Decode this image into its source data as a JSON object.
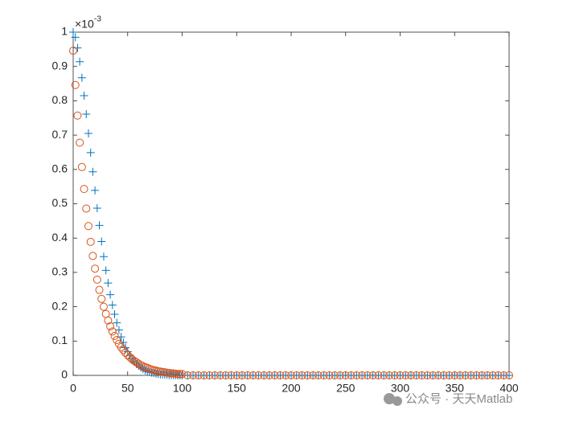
{
  "chart_data": {
    "type": "scatter",
    "y_multiplier": {
      "base": "×10",
      "exponent": "-3"
    },
    "watermark": "公众号 · 天天Matlab",
    "x": [
      0,
      2,
      4,
      6,
      8,
      10,
      12,
      14,
      16,
      18,
      20,
      22,
      24,
      26,
      28,
      30,
      32,
      34,
      36,
      38,
      40,
      42,
      44,
      46,
      48,
      50,
      52,
      54,
      56,
      58,
      60,
      62,
      64,
      66,
      68,
      70,
      72,
      74,
      76,
      78,
      80,
      82,
      84,
      86,
      88,
      90,
      92,
      94,
      96,
      98,
      100,
      105,
      110,
      115,
      120,
      125,
      130,
      135,
      140,
      145,
      150,
      155,
      160,
      165,
      170,
      175,
      180,
      185,
      190,
      195,
      200,
      205,
      210,
      215,
      220,
      225,
      230,
      235,
      240,
      245,
      250,
      255,
      260,
      265,
      270,
      275,
      280,
      285,
      290,
      295,
      300,
      305,
      310,
      315,
      320,
      325,
      330,
      335,
      340,
      345,
      350,
      355,
      360,
      365,
      370,
      375,
      380,
      385,
      390,
      395,
      400
    ],
    "series": [
      {
        "marker": "plus",
        "color": "#0072BD",
        "values": [
          1,
          0.985,
          0.954,
          0.914,
          0.867,
          0.815,
          0.761,
          0.705,
          0.649,
          0.593,
          0.539,
          0.487,
          0.437,
          0.39,
          0.346,
          0.306,
          0.269,
          0.235,
          0.205,
          0.178,
          0.153,
          0.132,
          0.112,
          0.096,
          0.081,
          0.069,
          0.058,
          0.048,
          0.04,
          0.033,
          0.028,
          0.023,
          0.019,
          0.015,
          0.012,
          0.01,
          0.008,
          0.007,
          0.005,
          0.004,
          0.003,
          0.003,
          0.002,
          0.002,
          0.001,
          0.001,
          0.001,
          0.001,
          0,
          0,
          0,
          0,
          0,
          0,
          0,
          0,
          0,
          0,
          0,
          0,
          0,
          0,
          0,
          0,
          0,
          0,
          0,
          0,
          0,
          0,
          0,
          0,
          0,
          0,
          0,
          0,
          0,
          0,
          0,
          0,
          0,
          0,
          0,
          0,
          0,
          0,
          0,
          0,
          0,
          0,
          0,
          0,
          0,
          0,
          0,
          0,
          0,
          0,
          0,
          0,
          0,
          0,
          0,
          0,
          0,
          0,
          0,
          0,
          0,
          0,
          0
        ]
      },
      {
        "marker": "circle",
        "color": "#D95319",
        "values": [
          0.946,
          0.846,
          0.757,
          0.678,
          0.607,
          0.543,
          0.486,
          0.435,
          0.389,
          0.348,
          0.311,
          0.279,
          0.249,
          0.223,
          0.2,
          0.179,
          0.16,
          0.143,
          0.128,
          0.115,
          0.103,
          0.092,
          0.082,
          0.074,
          0.066,
          0.059,
          0.053,
          0.047,
          0.042,
          0.038,
          0.034,
          0.03,
          0.027,
          0.024,
          0.022,
          0.019,
          0.017,
          0.015,
          0.014,
          0.012,
          0.011,
          0.01,
          0.009,
          0.008,
          0.007,
          0.006,
          0.006,
          0.005,
          0.004,
          0.004,
          0.004,
          0,
          0,
          0,
          0,
          0,
          0,
          0,
          0,
          0,
          0,
          0,
          0,
          0,
          0,
          0,
          0,
          0,
          0,
          0,
          0,
          0,
          0,
          0,
          0,
          0,
          0,
          0,
          0,
          0,
          0,
          0,
          0,
          0,
          0,
          0,
          0,
          0,
          0,
          0,
          0,
          0,
          0,
          0,
          0,
          0,
          0,
          0,
          0,
          0,
          0,
          0,
          0,
          0,
          0,
          0,
          0,
          0,
          0,
          0,
          0
        ]
      }
    ],
    "xlim": [
      0,
      400
    ],
    "xticks": [
      0,
      50,
      100,
      150,
      200,
      250,
      300,
      350,
      400
    ],
    "ylim": [
      0,
      1
    ],
    "yticks": [
      0,
      0.1,
      0.2,
      0.3,
      0.4,
      0.5,
      0.6,
      0.7,
      0.8,
      0.9,
      1
    ],
    "grid": false
  }
}
